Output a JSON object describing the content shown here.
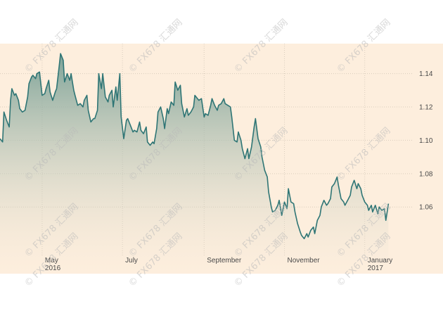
{
  "chart_data": {
    "type": "area",
    "title": "",
    "xlabel": "",
    "ylabel": "",
    "x_tick_labels": [
      {
        "label": "May",
        "sublabel": "2016",
        "date": "2016-05-01"
      },
      {
        "label": "July",
        "sublabel": "",
        "date": "2016-07-01"
      },
      {
        "label": "September",
        "sublabel": "",
        "date": "2016-09-01"
      },
      {
        "label": "November",
        "sublabel": "",
        "date": "2016-11-01"
      },
      {
        "label": "January",
        "sublabel": "2017",
        "date": "2017-01-01"
      }
    ],
    "xlim": [
      "2016-03-30",
      "2017-02-07"
    ],
    "y_ticks": [
      "1.06",
      "1.08",
      "1.10",
      "1.12",
      "1.14"
    ],
    "ylim": [
      1.02,
      1.158
    ],
    "grid": true,
    "legend": "none",
    "colors": {
      "line": "#2e7575",
      "fill_top": "#6f9a90",
      "fill_bottom": "#fdeedd",
      "plot_background": "#fdeedd",
      "grid": "#d9cdbd"
    },
    "series": [
      {
        "points": [
          [
            "2016-03-30",
            1.101
          ],
          [
            "2016-04-01",
            1.099
          ],
          [
            "2016-04-02",
            1.117
          ],
          [
            "2016-04-04",
            1.112
          ],
          [
            "2016-04-06",
            1.108
          ],
          [
            "2016-04-07",
            1.124
          ],
          [
            "2016-04-08",
            1.131
          ],
          [
            "2016-04-10",
            1.127
          ],
          [
            "2016-04-11",
            1.128
          ],
          [
            "2016-04-13",
            1.124
          ],
          [
            "2016-04-14",
            1.119
          ],
          [
            "2016-04-16",
            1.117
          ],
          [
            "2016-04-18",
            1.118
          ],
          [
            "2016-04-20",
            1.126
          ],
          [
            "2016-04-21",
            1.134
          ],
          [
            "2016-04-23",
            1.138
          ],
          [
            "2016-04-24",
            1.139
          ],
          [
            "2016-04-26",
            1.137
          ],
          [
            "2016-04-27",
            1.14
          ],
          [
            "2016-04-29",
            1.141
          ],
          [
            "2016-05-01",
            1.127
          ],
          [
            "2016-05-03",
            1.128
          ],
          [
            "2016-05-04",
            1.131
          ],
          [
            "2016-05-06",
            1.136
          ],
          [
            "2016-05-07",
            1.129
          ],
          [
            "2016-05-09",
            1.124
          ],
          [
            "2016-05-11",
            1.129
          ],
          [
            "2016-05-12",
            1.131
          ],
          [
            "2016-05-14",
            1.145
          ],
          [
            "2016-05-15",
            1.152
          ],
          [
            "2016-05-17",
            1.148
          ],
          [
            "2016-05-18",
            1.135
          ],
          [
            "2016-05-20",
            1.14
          ],
          [
            "2016-05-22",
            1.136
          ],
          [
            "2016-05-23",
            1.14
          ],
          [
            "2016-05-25",
            1.13
          ],
          [
            "2016-05-26",
            1.127
          ],
          [
            "2016-05-28",
            1.121
          ],
          [
            "2016-05-30",
            1.122
          ],
          [
            "2016-06-01",
            1.12
          ],
          [
            "2016-06-02",
            1.124
          ],
          [
            "2016-06-04",
            1.127
          ],
          [
            "2016-06-05",
            1.118
          ],
          [
            "2016-06-07",
            1.111
          ],
          [
            "2016-06-09",
            1.113
          ],
          [
            "2016-06-10",
            1.113
          ],
          [
            "2016-06-12",
            1.118
          ],
          [
            "2016-06-13",
            1.14
          ],
          [
            "2016-06-15",
            1.131
          ],
          [
            "2016-06-16",
            1.14
          ],
          [
            "2016-06-18",
            1.126
          ],
          [
            "2016-06-20",
            1.123
          ],
          [
            "2016-06-21",
            1.127
          ],
          [
            "2016-06-23",
            1.13
          ],
          [
            "2016-06-24",
            1.12
          ],
          [
            "2016-06-26",
            1.132
          ],
          [
            "2016-06-27",
            1.124
          ],
          [
            "2016-06-29",
            1.14
          ],
          [
            "2016-06-30",
            1.114
          ],
          [
            "2016-07-02",
            1.101
          ],
          [
            "2016-07-04",
            1.112
          ],
          [
            "2016-07-05",
            1.113
          ],
          [
            "2016-07-07",
            1.109
          ],
          [
            "2016-07-09",
            1.105
          ],
          [
            "2016-07-10",
            1.106
          ],
          [
            "2016-07-12",
            1.105
          ],
          [
            "2016-07-14",
            1.111
          ],
          [
            "2016-07-15",
            1.106
          ],
          [
            "2016-07-17",
            1.104
          ],
          [
            "2016-07-19",
            1.108
          ],
          [
            "2016-07-20",
            1.099
          ],
          [
            "2016-07-22",
            1.097
          ],
          [
            "2016-07-24",
            1.099
          ],
          [
            "2016-07-25",
            1.098
          ],
          [
            "2016-07-27",
            1.107
          ],
          [
            "2016-07-28",
            1.117
          ],
          [
            "2016-07-30",
            1.12
          ],
          [
            "2016-08-01",
            1.113
          ],
          [
            "2016-08-02",
            1.107
          ],
          [
            "2016-08-04",
            1.119
          ],
          [
            "2016-08-05",
            1.116
          ],
          [
            "2016-08-07",
            1.123
          ],
          [
            "2016-08-09",
            1.121
          ],
          [
            "2016-08-10",
            1.135
          ],
          [
            "2016-08-12",
            1.13
          ],
          [
            "2016-08-14",
            1.133
          ],
          [
            "2016-08-15",
            1.122
          ],
          [
            "2016-08-17",
            1.114
          ],
          [
            "2016-08-19",
            1.119
          ],
          [
            "2016-08-20",
            1.115
          ],
          [
            "2016-08-22",
            1.117
          ],
          [
            "2016-08-24",
            1.12
          ],
          [
            "2016-08-25",
            1.127
          ],
          [
            "2016-08-27",
            1.125
          ],
          [
            "2016-08-28",
            1.124
          ],
          [
            "2016-08-30",
            1.125
          ],
          [
            "2016-09-01",
            1.114
          ],
          [
            "2016-09-02",
            1.116
          ],
          [
            "2016-09-04",
            1.115
          ],
          [
            "2016-09-06",
            1.121
          ],
          [
            "2016-09-07",
            1.125
          ],
          [
            "2016-09-09",
            1.121
          ],
          [
            "2016-09-11",
            1.118
          ],
          [
            "2016-09-12",
            1.121
          ],
          [
            "2016-09-14",
            1.122
          ],
          [
            "2016-09-16",
            1.125
          ],
          [
            "2016-09-17",
            1.122
          ],
          [
            "2016-09-19",
            1.121
          ],
          [
            "2016-09-21",
            1.12
          ],
          [
            "2016-09-22",
            1.114
          ],
          [
            "2016-09-24",
            1.1
          ],
          [
            "2016-09-26",
            1.099
          ],
          [
            "2016-09-27",
            1.105
          ],
          [
            "2016-09-29",
            1.1
          ],
          [
            "2016-09-30",
            1.095
          ],
          [
            "2016-10-02",
            1.089
          ],
          [
            "2016-10-04",
            1.095
          ],
          [
            "2016-10-05",
            1.089
          ],
          [
            "2016-10-07",
            1.096
          ],
          [
            "2016-10-09",
            1.108
          ],
          [
            "2016-10-10",
            1.113
          ],
          [
            "2016-10-12",
            1.101
          ],
          [
            "2016-10-14",
            1.096
          ],
          [
            "2016-10-15",
            1.09
          ],
          [
            "2016-10-17",
            1.082
          ],
          [
            "2016-10-19",
            1.078
          ],
          [
            "2016-10-20",
            1.069
          ],
          [
            "2016-10-22",
            1.06
          ],
          [
            "2016-10-23",
            1.057
          ],
          [
            "2016-10-25",
            1.058
          ],
          [
            "2016-10-27",
            1.061
          ],
          [
            "2016-10-28",
            1.064
          ],
          [
            "2016-10-30",
            1.055
          ],
          [
            "2016-11-01",
            1.063
          ],
          [
            "2016-11-03",
            1.059
          ],
          [
            "2016-11-04",
            1.071
          ],
          [
            "2016-11-06",
            1.063
          ],
          [
            "2016-11-08",
            1.062
          ],
          [
            "2016-11-09",
            1.057
          ],
          [
            "2016-11-11",
            1.05
          ],
          [
            "2016-11-13",
            1.045
          ],
          [
            "2016-11-14",
            1.043
          ],
          [
            "2016-11-16",
            1.041
          ],
          [
            "2016-11-18",
            1.044
          ],
          [
            "2016-11-19",
            1.042
          ],
          [
            "2016-11-21",
            1.046
          ],
          [
            "2016-11-23",
            1.048
          ],
          [
            "2016-11-24",
            1.044
          ],
          [
            "2016-11-26",
            1.052
          ],
          [
            "2016-11-28",
            1.055
          ],
          [
            "2016-11-29",
            1.06
          ],
          [
            "2016-12-01",
            1.064
          ],
          [
            "2016-12-03",
            1.061
          ],
          [
            "2016-12-04",
            1.062
          ],
          [
            "2016-12-06",
            1.065
          ],
          [
            "2016-12-07",
            1.072
          ],
          [
            "2016-12-09",
            1.074
          ],
          [
            "2016-12-11",
            1.078
          ],
          [
            "2016-12-12",
            1.073
          ],
          [
            "2016-12-14",
            1.065
          ],
          [
            "2016-12-16",
            1.063
          ],
          [
            "2016-12-17",
            1.061
          ],
          [
            "2016-12-19",
            1.064
          ],
          [
            "2016-12-21",
            1.067
          ],
          [
            "2016-12-22",
            1.072
          ],
          [
            "2016-12-24",
            1.076
          ],
          [
            "2016-12-26",
            1.071
          ],
          [
            "2016-12-27",
            1.074
          ],
          [
            "2016-12-29",
            1.071
          ],
          [
            "2016-12-30",
            1.067
          ],
          [
            "2017-01-01",
            1.063
          ],
          [
            "2017-01-03",
            1.061
          ],
          [
            "2017-01-04",
            1.058
          ],
          [
            "2017-01-06",
            1.061
          ],
          [
            "2017-01-07",
            1.057
          ],
          [
            "2017-01-09",
            1.061
          ],
          [
            "2017-01-11",
            1.056
          ],
          [
            "2017-01-12",
            1.06
          ],
          [
            "2017-01-14",
            1.058
          ],
          [
            "2017-01-16",
            1.059
          ],
          [
            "2017-01-17",
            1.052
          ],
          [
            "2017-01-19",
            1.062
          ]
        ]
      }
    ]
  },
  "watermark": {
    "text": "FX678 汇通网"
  }
}
